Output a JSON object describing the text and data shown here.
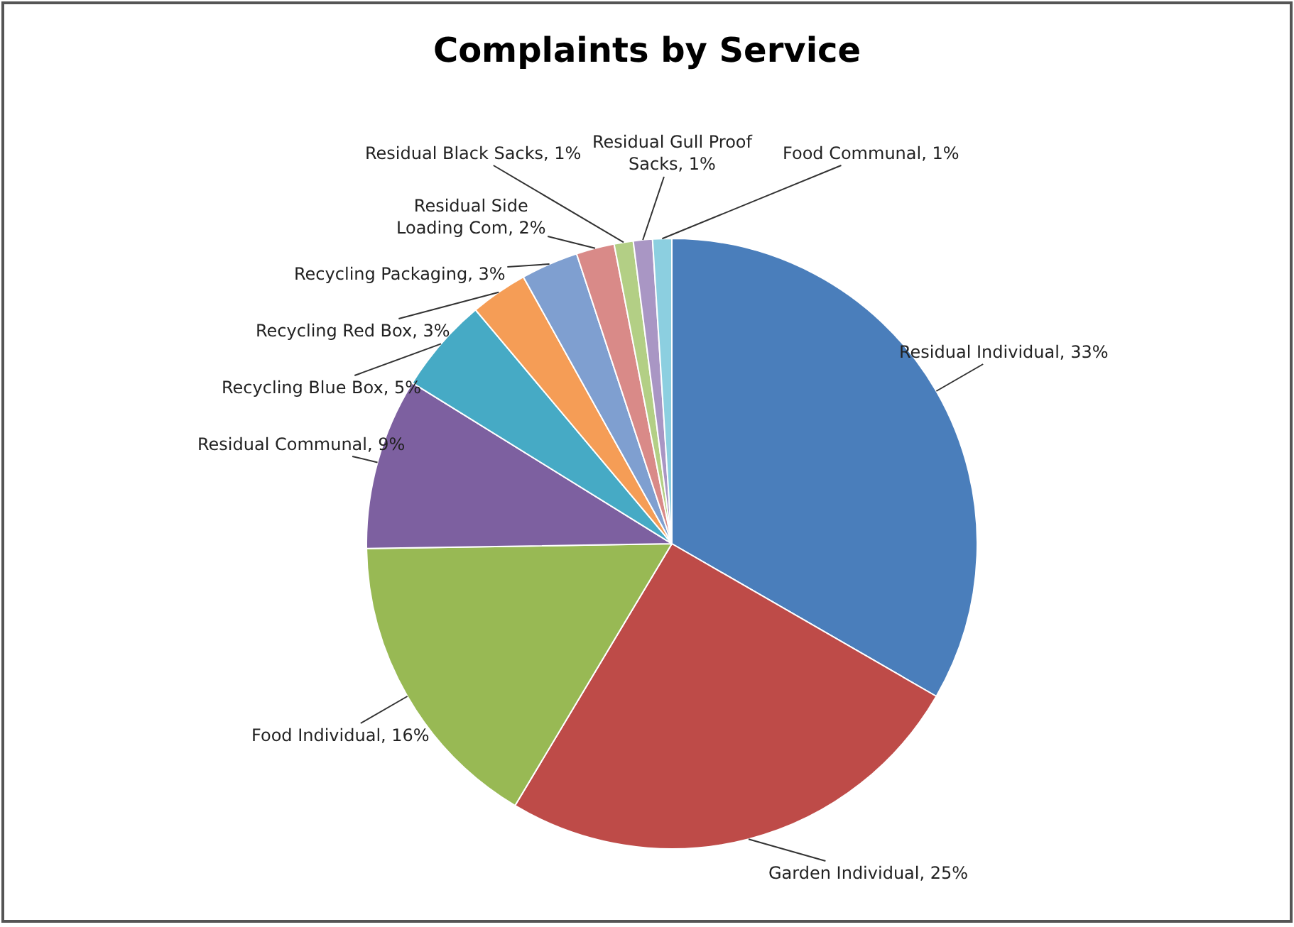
{
  "chart_data": {
    "type": "pie",
    "title": "Complaints by Service",
    "categories": [
      "Residual Individual",
      "Garden Individual",
      "Food Individual",
      "Residual Communal",
      "Recycling Blue Box",
      "Recycling Red Box",
      "Recycling Packaging",
      "Residual Side Loading Com",
      "Residual Black Sacks",
      "Residual Gull Proof Sacks",
      "Food Communal"
    ],
    "values": [
      33,
      25,
      16,
      9,
      5,
      3,
      3,
      2,
      1,
      1,
      1
    ],
    "value_labels": [
      "33%",
      "25%",
      "16%",
      "9%",
      "5%",
      "3%",
      "3%",
      "2%",
      "1%",
      "1%",
      "1%"
    ],
    "colors": [
      "#4a7ebb",
      "#be4b48",
      "#98b954",
      "#7d60a0",
      "#46aac5",
      "#f59d56",
      "#7f9fd0",
      "#d98a88",
      "#b3cf85",
      "#a996c4",
      "#8ccfe0"
    ],
    "legend": false
  }
}
